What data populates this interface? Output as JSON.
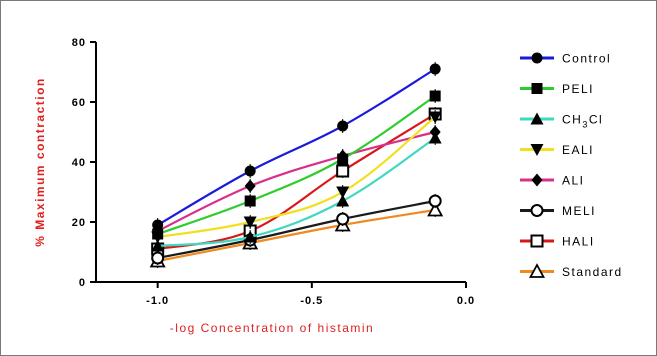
{
  "chart_data": {
    "type": "line",
    "title": "",
    "xlabel": "-log Concentration of histamin",
    "ylabel": "% Maximum contraction",
    "xlim": [
      -1.2,
      0.0
    ],
    "ylim": [
      0,
      80
    ],
    "xticks": [
      -1.0,
      -0.5,
      0.0
    ],
    "xtick_labels": [
      "-1.0",
      "-0.5",
      "0.0"
    ],
    "yticks": [
      0,
      20,
      40,
      60,
      80
    ],
    "ytick_labels": [
      "0",
      "20",
      "40",
      "60",
      "80"
    ],
    "grid": false,
    "legend_position": "right",
    "x": [
      -1.0,
      -0.7,
      -0.4,
      -0.1
    ],
    "series": [
      {
        "name": "Control",
        "legend": [
          "Control"
        ],
        "color": "#1a1adb",
        "marker": "circle-filled",
        "values": [
          19,
          37,
          52,
          71
        ]
      },
      {
        "name": "PELI",
        "legend": [
          "PELI"
        ],
        "color": "#2ecc2e",
        "marker": "square-filled",
        "values": [
          16,
          27,
          41,
          62
        ]
      },
      {
        "name": "CH3Cl",
        "legend": [
          "CH",
          "3",
          "Cl"
        ],
        "color": "#3fd8c0",
        "marker": "triangle-filled",
        "values": [
          12,
          15,
          27,
          48
        ]
      },
      {
        "name": "EALI",
        "legend": [
          "EALI"
        ],
        "color": "#f0e020",
        "marker": "tri-down-filled",
        "values": [
          15,
          20,
          30,
          55
        ]
      },
      {
        "name": "ALI",
        "legend": [
          "ALI"
        ],
        "color": "#d8308a",
        "marker": "diamond-filled",
        "values": [
          17,
          32,
          42,
          50
        ]
      },
      {
        "name": "MELI",
        "legend": [
          "MELI"
        ],
        "color": "#1a1a1a",
        "marker": "circle-open",
        "values": [
          8,
          14,
          21,
          27
        ]
      },
      {
        "name": "HALI",
        "legend": [
          "HALI"
        ],
        "color": "#d81818",
        "marker": "square-open",
        "values": [
          11,
          17,
          37,
          56
        ]
      },
      {
        "name": "Standard",
        "legend": [
          "Standard"
        ],
        "color": "#f08a20",
        "marker": "triangle-open",
        "values": [
          7,
          13,
          19,
          24
        ]
      }
    ]
  }
}
